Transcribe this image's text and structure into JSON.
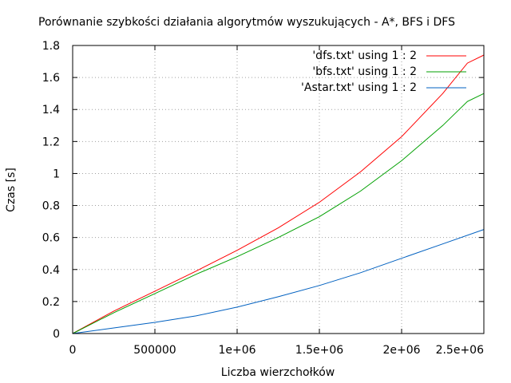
{
  "chart_data": {
    "type": "line",
    "title": "Porównanie szybkości działania algorytmów wyszukujących - A*, BFS i DFS",
    "xlabel": "Liczba wierzchołków",
    "ylabel": "Czas [s]",
    "xlim": [
      0,
      2500000
    ],
    "ylim": [
      0,
      1.8
    ],
    "xticks": [
      {
        "value": 0,
        "label": "0"
      },
      {
        "value": 500000,
        "label": "500000"
      },
      {
        "value": 1000000,
        "label": "1e+06"
      },
      {
        "value": 1500000,
        "label": "1.5e+06"
      },
      {
        "value": 2000000,
        "label": "2e+06"
      },
      {
        "value": 2500000,
        "label": "2.5e+06"
      }
    ],
    "yticks": [
      {
        "value": 0,
        "label": "0"
      },
      {
        "value": 0.2,
        "label": "0.2"
      },
      {
        "value": 0.4,
        "label": "0.4"
      },
      {
        "value": 0.6,
        "label": "0.6"
      },
      {
        "value": 0.8,
        "label": "0.8"
      },
      {
        "value": 1.0,
        "label": "1"
      },
      {
        "value": 1.2,
        "label": "1.2"
      },
      {
        "value": 1.4,
        "label": "1.4"
      },
      {
        "value": 1.6,
        "label": "1.6"
      },
      {
        "value": 1.8,
        "label": "1.8"
      }
    ],
    "grid": true,
    "legend_position": "top-right",
    "series": [
      {
        "name": "'dfs.txt' using 1 : 2",
        "color": "#ff0000",
        "x": [
          0,
          250000,
          500000,
          750000,
          1000000,
          1250000,
          1500000,
          1750000,
          2000000,
          2250000,
          2400000,
          2500000
        ],
        "y": [
          0,
          0.14,
          0.265,
          0.39,
          0.52,
          0.66,
          0.82,
          1.01,
          1.23,
          1.5,
          1.69,
          1.74
        ]
      },
      {
        "name": "'bfs.txt' using 1 : 2",
        "color": "#00a000",
        "x": [
          0,
          250000,
          500000,
          750000,
          1000000,
          1250000,
          1500000,
          1750000,
          2000000,
          2250000,
          2400000,
          2500000
        ],
        "y": [
          0,
          0.13,
          0.25,
          0.37,
          0.48,
          0.6,
          0.73,
          0.89,
          1.08,
          1.3,
          1.45,
          1.5
        ]
      },
      {
        "name": "'Astar.txt' using 1 : 2",
        "color": "#0060c0",
        "x": [
          0,
          250000,
          500000,
          750000,
          1000000,
          1250000,
          1500000,
          1750000,
          2000000,
          2250000,
          2500000
        ],
        "y": [
          0,
          0.035,
          0.07,
          0.11,
          0.165,
          0.23,
          0.3,
          0.38,
          0.47,
          0.56,
          0.65
        ]
      }
    ]
  }
}
